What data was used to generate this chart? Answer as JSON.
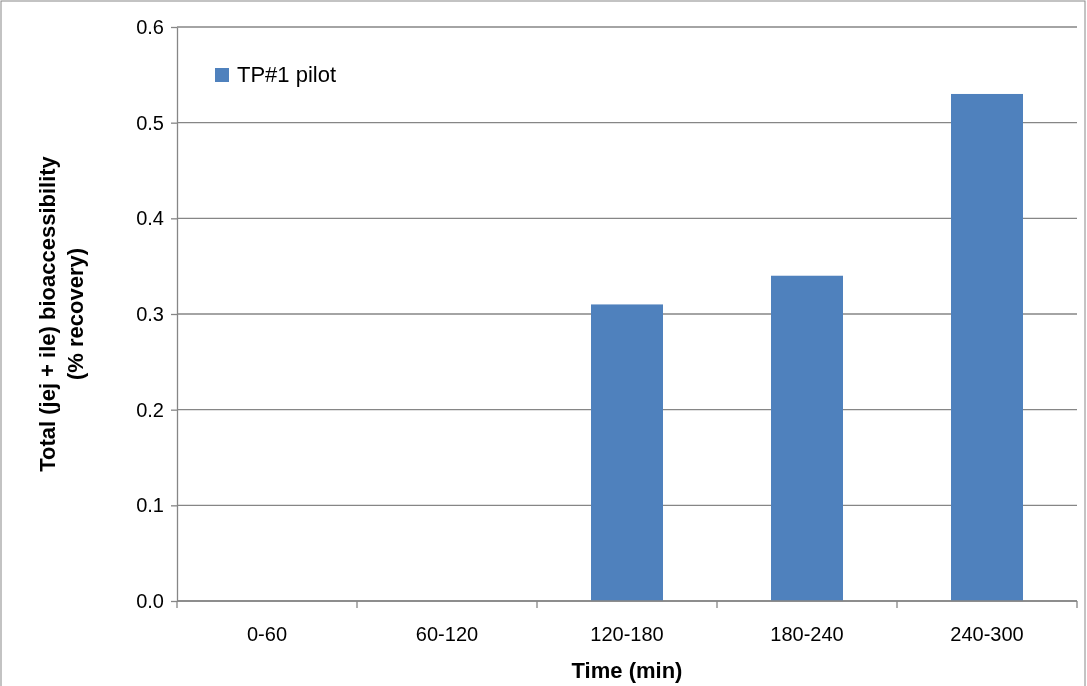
{
  "chart_data": {
    "type": "bar",
    "xlabel": "Time (min)",
    "ylabel": "Total (jej + ile) bioaccessibility\n(% recovery)",
    "categories": [
      "0-60",
      "60-120",
      "120-180",
      "180-240",
      "240-300"
    ],
    "series": [
      {
        "name": "TP#1 pilot",
        "color": "#4f81bd",
        "values": [
          0,
          0,
          0.31,
          0.34,
          0.53
        ]
      }
    ],
    "ylim": [
      0,
      0.6
    ],
    "yticks": [
      {
        "value": 0,
        "label": "0.0"
      },
      {
        "value": 0.1,
        "label": "0.1"
      },
      {
        "value": 0.2,
        "label": "0.2"
      },
      {
        "value": 0.3,
        "label": "0.3"
      },
      {
        "value": 0.4,
        "label": "0.4"
      },
      {
        "value": 0.5,
        "label": "0.5"
      },
      {
        "value": 0.6,
        "label": "0.6"
      }
    ],
    "grid": "y",
    "legend": "top left"
  }
}
